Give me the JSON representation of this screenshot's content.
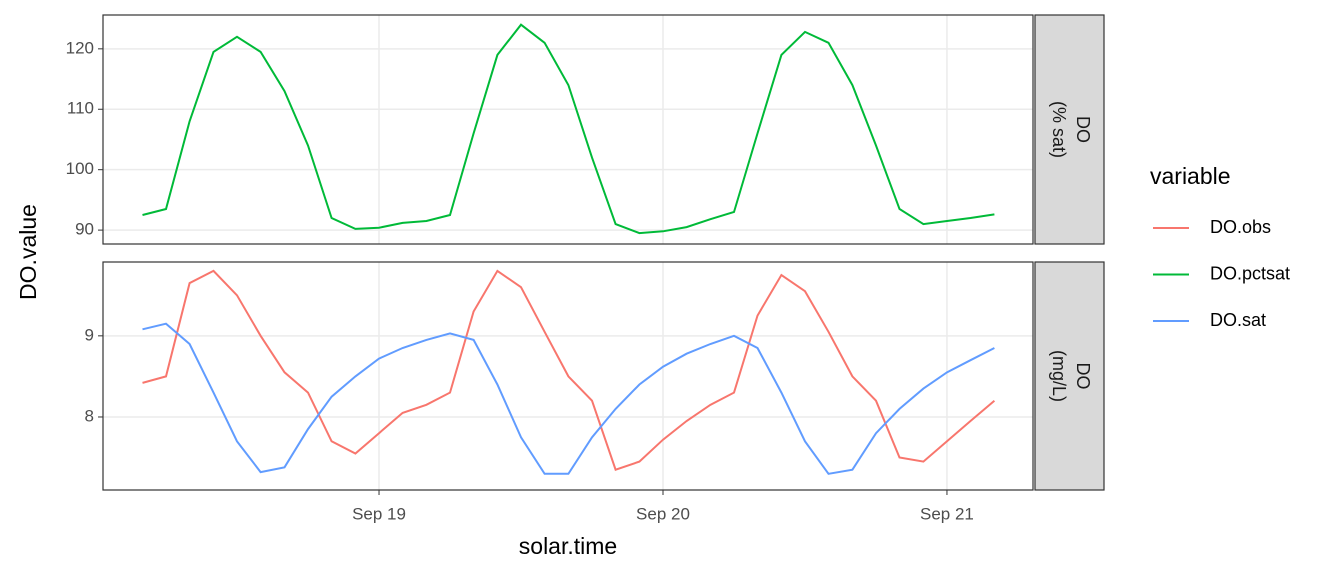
{
  "chart_data": {
    "type": "line",
    "xlabel": "solar.time",
    "ylabel": "DO.value",
    "legend_title": "variable",
    "grid": true,
    "xlim": [
      18.028,
      21.303
    ],
    "xticks": [
      {
        "value": 19,
        "label": "Sep 19"
      },
      {
        "value": 20,
        "label": "Sep 20"
      },
      {
        "value": 21,
        "label": "Sep 21"
      }
    ],
    "x": [
      18.167,
      18.25,
      18.333,
      18.417,
      18.5,
      18.583,
      18.667,
      18.75,
      18.833,
      18.917,
      19.0,
      19.083,
      19.167,
      19.25,
      19.333,
      19.417,
      19.5,
      19.583,
      19.667,
      19.75,
      19.833,
      19.917,
      20.0,
      20.083,
      20.167,
      20.25,
      20.333,
      20.417,
      20.5,
      20.583,
      20.667,
      20.75,
      20.833,
      20.917,
      21.0,
      21.083,
      21.167
    ],
    "panels": [
      {
        "strip": [
          "DO",
          "(% sat)"
        ],
        "ylim": [
          87.7,
          125.6
        ],
        "yticks": [
          90,
          100,
          110,
          120
        ]
      },
      {
        "strip": [
          "DO",
          "(mg/L)"
        ],
        "ylim": [
          7.1,
          9.91
        ],
        "yticks": [
          8,
          9
        ]
      }
    ],
    "series": [
      {
        "name": "DO.obs",
        "color": "#f8766d",
        "panel": 1,
        "values": [
          8.42,
          8.5,
          9.65,
          9.8,
          9.5,
          9.0,
          8.55,
          8.3,
          7.7,
          7.55,
          7.8,
          8.05,
          8.15,
          8.3,
          9.3,
          9.8,
          9.6,
          9.05,
          8.5,
          8.2,
          7.35,
          7.45,
          7.72,
          7.95,
          8.15,
          8.3,
          9.25,
          9.75,
          9.55,
          9.05,
          8.5,
          8.2,
          7.5,
          7.45,
          7.7,
          7.95,
          8.2
        ]
      },
      {
        "name": "DO.pctsat",
        "color": "#00ba38",
        "panel": 0,
        "values": [
          92.5,
          93.5,
          108,
          119.5,
          122,
          119.5,
          113,
          104,
          92,
          90.2,
          90.4,
          91.2,
          91.5,
          92.5,
          106,
          119,
          124,
          121,
          114,
          102,
          91,
          89.5,
          89.8,
          90.5,
          91.8,
          93,
          106,
          119,
          122.8,
          121,
          114,
          104,
          93.5,
          91,
          91.5,
          92,
          92.6
        ]
      },
      {
        "name": "DO.sat",
        "color": "#619cff",
        "panel": 1,
        "values": [
          9.08,
          9.15,
          8.9,
          8.3,
          7.7,
          7.32,
          7.38,
          7.85,
          8.25,
          8.5,
          8.72,
          8.85,
          8.95,
          9.03,
          8.95,
          8.4,
          7.75,
          7.3,
          7.3,
          7.75,
          8.1,
          8.4,
          8.62,
          8.78,
          8.9,
          9.0,
          8.85,
          8.3,
          7.7,
          7.3,
          7.35,
          7.8,
          8.1,
          8.35,
          8.55,
          8.7,
          8.85
        ]
      }
    ]
  }
}
